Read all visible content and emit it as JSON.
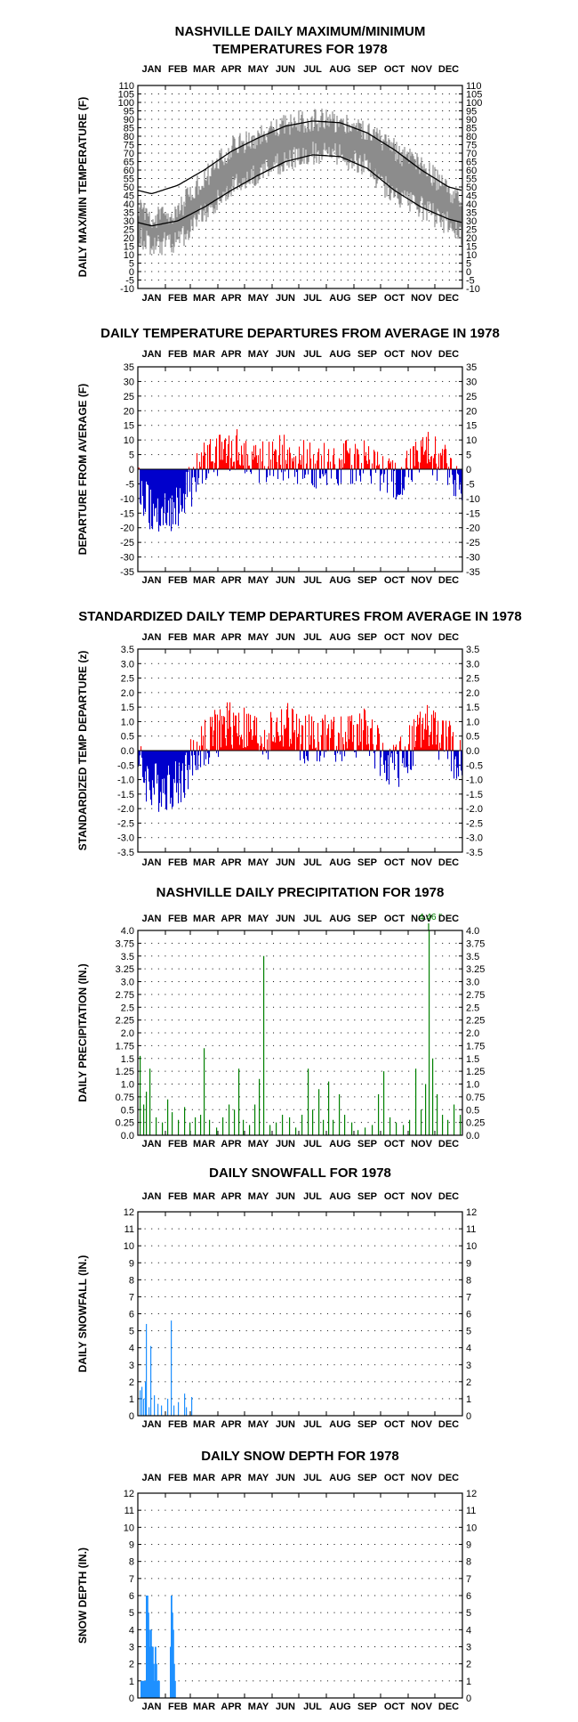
{
  "months": [
    "JAN",
    "FEB",
    "MAR",
    "APR",
    "MAY",
    "JUN",
    "JUL",
    "AUG",
    "SEP",
    "OCT",
    "NOV",
    "DEC"
  ],
  "colors": {
    "max_min_line": "#000000",
    "actual": "#8c8c8c",
    "above": "#ff0000",
    "below": "#0000cc",
    "precip": "#008000",
    "snow": "#1e90ff",
    "grid": "#000000"
  },
  "chart_data": [
    {
      "id": "temp",
      "type": "line",
      "title": [
        "NASHVILLE DAILY MAXIMUM/MINIMUM",
        "TEMPERATURES FOR 1978"
      ],
      "ylabel": "DAILY MAX/MIN TEMPERATURE (F)",
      "ylim": [
        -10,
        110
      ],
      "yticks": [
        -10,
        -5,
        0,
        5,
        10,
        15,
        20,
        25,
        30,
        35,
        40,
        45,
        50,
        55,
        60,
        65,
        70,
        75,
        80,
        85,
        90,
        95,
        100,
        105,
        110
      ],
      "x": "day_of_year_1_to_365",
      "series": [
        {
          "kind": "normal_max",
          "values_by_month": [
            46,
            51,
            60,
            71,
            79,
            86,
            89,
            88,
            82,
            72,
            60,
            50
          ]
        },
        {
          "kind": "normal_min",
          "values_by_month": [
            27,
            30,
            38,
            48,
            57,
            65,
            69,
            68,
            61,
            48,
            38,
            31
          ]
        },
        {
          "kind": "observed_range",
          "note_values_by_month_max": [
            30,
            36,
            55,
            73,
            80,
            87,
            90,
            89,
            84,
            72,
            62,
            48
          ],
          "note_values_by_month_min": [
            15,
            18,
            35,
            50,
            57,
            66,
            70,
            69,
            62,
            44,
            38,
            28
          ]
        }
      ],
      "grid": true
    },
    {
      "id": "dep",
      "type": "bar",
      "title": [
        "DAILY TEMPERATURE DEPARTURES FROM AVERAGE IN 1978"
      ],
      "ylabel": "DEPARTURE FROM AVERAGE (F)",
      "ylim": [
        -35,
        35
      ],
      "yticks": [
        -35,
        -30,
        -25,
        -20,
        -15,
        -10,
        -5,
        0,
        5,
        10,
        15,
        20,
        25,
        30,
        35
      ],
      "monthly_pattern": [
        -14,
        -13,
        2,
        7,
        3,
        4,
        1,
        2,
        3,
        -5,
        6,
        1
      ],
      "grid": true
    },
    {
      "id": "std",
      "type": "bar",
      "title": [
        "STANDARDIZED DAILY TEMP DEPARTURES FROM AVERAGE IN 1978"
      ],
      "ylabel": "STANDARDIZED TEMP DEPARTURE (z)",
      "ylim": [
        -3.5,
        3.5
      ],
      "yticks": [
        -3.5,
        -3.0,
        -2.5,
        -2.0,
        -1.5,
        -1.0,
        -0.5,
        0.0,
        0.5,
        1.0,
        1.5,
        2.0,
        2.5,
        3.0,
        3.5
      ],
      "monthly_pattern": [
        -1.3,
        -1.2,
        0.3,
        0.9,
        0.4,
        0.8,
        0.3,
        0.5,
        0.6,
        -0.7,
        0.8,
        0.2
      ],
      "grid": true
    },
    {
      "id": "precip",
      "type": "bar",
      "title": [
        "NASHVILLE DAILY PRECIPITATION FOR 1978"
      ],
      "ylabel": "DAILY PRECIPITATION (IN.)",
      "ylim": [
        0,
        4.0
      ],
      "yticks": [
        0.0,
        0.25,
        0.5,
        0.75,
        1.0,
        1.25,
        1.5,
        1.75,
        2.0,
        2.25,
        2.5,
        2.75,
        3.0,
        3.25,
        3.5,
        3.75,
        4.0
      ],
      "events": [
        [
          2,
          1.55
        ],
        [
          6,
          0.6
        ],
        [
          9,
          0.85
        ],
        [
          13,
          1.3
        ],
        [
          20,
          0.35
        ],
        [
          27,
          0.25
        ],
        [
          33,
          0.7
        ],
        [
          38,
          0.45
        ],
        [
          45,
          0.3
        ],
        [
          52,
          0.55
        ],
        [
          58,
          0.25
        ],
        [
          64,
          0.35
        ],
        [
          70,
          0.4
        ],
        [
          74,
          1.7
        ],
        [
          80,
          0.3
        ],
        [
          88,
          0.15
        ],
        [
          95,
          0.35
        ],
        [
          102,
          0.6
        ],
        [
          108,
          0.5
        ],
        [
          113,
          1.3
        ],
        [
          118,
          0.3
        ],
        [
          125,
          0.2
        ],
        [
          131,
          0.6
        ],
        [
          136,
          1.1
        ],
        [
          141,
          3.5
        ],
        [
          148,
          0.2
        ],
        [
          155,
          0.25
        ],
        [
          162,
          0.4
        ],
        [
          170,
          0.35
        ],
        [
          177,
          0.15
        ],
        [
          184,
          0.4
        ],
        [
          191,
          1.3
        ],
        [
          196,
          0.5
        ],
        [
          203,
          0.9
        ],
        [
          208,
          0.3
        ],
        [
          214,
          1.05
        ],
        [
          219,
          0.3
        ],
        [
          226,
          0.8
        ],
        [
          232,
          0.4
        ],
        [
          240,
          0.25
        ],
        [
          247,
          0.1
        ],
        [
          255,
          0.15
        ],
        [
          263,
          0.2
        ],
        [
          270,
          0.8
        ],
        [
          276,
          1.25
        ],
        [
          283,
          0.35
        ],
        [
          290,
          0.25
        ],
        [
          298,
          0.2
        ],
        [
          305,
          0.3
        ],
        [
          312,
          1.3
        ],
        [
          318,
          0.5
        ],
        [
          323,
          1.0
        ],
        [
          327,
          4.46
        ],
        [
          331,
          1.5
        ],
        [
          336,
          0.8
        ],
        [
          342,
          0.4
        ],
        [
          348,
          0.3
        ],
        [
          355,
          0.6
        ],
        [
          362,
          0.4
        ]
      ],
      "annotations": [
        "4.46 \""
      ],
      "grid": true
    },
    {
      "id": "snow",
      "type": "bar",
      "title": [
        "DAILY SNOWFALL FOR 1978"
      ],
      "ylabel": "DAILY SNOWFALL (IN.)",
      "ylim": [
        0,
        12
      ],
      "yticks": [
        0,
        1,
        2,
        3,
        4,
        5,
        6,
        7,
        8,
        9,
        10,
        11,
        12
      ],
      "events": [
        [
          2,
          1.5
        ],
        [
          4,
          1.7
        ],
        [
          6,
          1.0
        ],
        [
          8,
          2.0
        ],
        [
          9,
          5.4
        ],
        [
          12,
          0.5
        ],
        [
          14,
          4.1
        ],
        [
          18,
          1.2
        ],
        [
          22,
          0.7
        ],
        [
          26,
          0.6
        ],
        [
          33,
          1.0
        ],
        [
          37,
          5.6
        ],
        [
          40,
          0.6
        ],
        [
          45,
          0.8
        ],
        [
          52,
          1.3
        ],
        [
          54,
          0.5
        ],
        [
          60,
          1.1
        ]
      ],
      "grid": true
    },
    {
      "id": "depth",
      "type": "bar",
      "title": [
        "DAILY SNOW DEPTH FOR 1978"
      ],
      "ylabel": "SNOW DEPTH (IN.)",
      "ylim": [
        0,
        12
      ],
      "yticks": [
        0,
        1,
        2,
        3,
        4,
        5,
        6,
        7,
        8,
        9,
        10,
        11,
        12
      ],
      "events": [
        [
          3,
          1
        ],
        [
          4,
          1
        ],
        [
          5,
          1
        ],
        [
          6,
          1
        ],
        [
          7,
          1
        ],
        [
          8,
          1
        ],
        [
          9,
          6
        ],
        [
          10,
          6
        ],
        [
          11,
          5
        ],
        [
          12,
          4
        ],
        [
          13,
          3
        ],
        [
          14,
          4
        ],
        [
          15,
          3
        ],
        [
          16,
          3
        ],
        [
          17,
          2
        ],
        [
          18,
          1
        ],
        [
          19,
          3
        ],
        [
          20,
          2
        ],
        [
          21,
          1
        ],
        [
          22,
          1
        ],
        [
          23,
          1
        ],
        [
          36,
          3
        ],
        [
          37,
          6
        ],
        [
          38,
          5
        ],
        [
          39,
          4
        ],
        [
          40,
          2
        ],
        [
          41,
          1
        ]
      ],
      "grid": true
    }
  ]
}
